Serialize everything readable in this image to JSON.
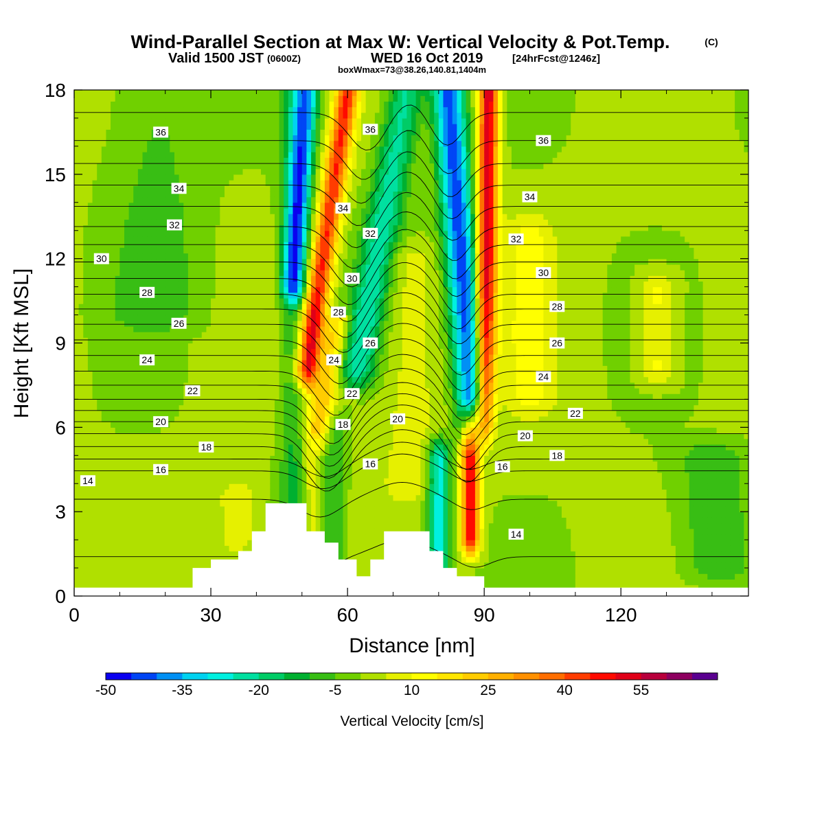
{
  "chart_data": {
    "type": "heatmap",
    "title": {
      "main": "Wind-Parallel Section at Max W: Vertical Velocity & Pot.Temp.",
      "copyright": "(C)",
      "line2_a": "Valid 1500 JST",
      "line2_b": "(0600Z)",
      "line2_c": "WED 16 Oct 2019",
      "line2_d": "[24hrFcst@1246z]",
      "line3": "boxWmax=73@38.26,140.81,1404m"
    },
    "xlabel": "Distance [nm]",
    "ylabel": "Height [Kft MSL]",
    "xlim": [
      0,
      148
    ],
    "ylim": [
      0,
      18
    ],
    "x_ticks": [
      "0",
      "30",
      "60",
      "90",
      "120"
    ],
    "y_ticks": [
      "0",
      "3",
      "6",
      "9",
      "12",
      "15",
      "18"
    ],
    "colorbar": {
      "label": "Vertical Velocity [cm/s]",
      "tick_labels": [
        "-50",
        "-35",
        "-20",
        "-5",
        "10",
        "25",
        "40",
        "55"
      ],
      "colors": [
        "#0a00f0",
        "#0045f5",
        "#0090f5",
        "#00d2f0",
        "#00f0e0",
        "#00e0a0",
        "#00cc66",
        "#00b030",
        "#38be14",
        "#70d000",
        "#b0e000",
        "#e6f000",
        "#ffff00",
        "#ffe600",
        "#ffcc00",
        "#ffb000",
        "#ff9000",
        "#ff6e00",
        "#ff3c00",
        "#ff0a00",
        "#e00018",
        "#b8003c",
        "#8e0060",
        "#5a0090"
      ]
    },
    "bands": [
      {
        "x": 48,
        "w": 3,
        "v": -12,
        "y0": 0,
        "y1": 18
      },
      {
        "x": 52,
        "w": 2.2,
        "v": 8,
        "y0": 1,
        "y1": 10
      },
      {
        "x": 57,
        "w": 2.5,
        "v": -10,
        "y0": 1,
        "y1": 6
      },
      {
        "x": 74,
        "w": 6,
        "v": 8,
        "y0": 4,
        "y1": 12
      },
      {
        "x": 80,
        "w": 2.5,
        "v": -30,
        "y0": 1,
        "y1": 5
      },
      {
        "x": 87,
        "w": 2,
        "v": 48,
        "y0": 2,
        "y1": 6
      },
      {
        "x": 100,
        "w": 5,
        "v": 10,
        "y0": 7,
        "y1": 13
      },
      {
        "x": 128,
        "w": 4,
        "v": 12,
        "y0": 8,
        "y1": 11
      },
      {
        "x": 36,
        "w": 4,
        "v": 10,
        "y0": 2,
        "y1": 3.5
      },
      {
        "x": 18,
        "w": 10,
        "v": -8,
        "y0": 10,
        "y1": 18
      },
      {
        "x": 140,
        "w": 8,
        "v": -10,
        "y0": 1,
        "y1": 5
      }
    ],
    "tilted_bands": [
      {
        "x_top": 51,
        "x_bot": 48,
        "w": 2.5,
        "v": -38,
        "y0": 11,
        "y1": 18
      },
      {
        "x_top": 60,
        "x_bot": 51,
        "w": 2.5,
        "v": 44,
        "y0": 8,
        "y1": 18
      },
      {
        "x_top": 82,
        "x_bot": 88,
        "w": 3.5,
        "v": -44,
        "y0": 6,
        "y1": 18
      },
      {
        "x_top": 91,
        "x_bot": 90,
        "w": 2.2,
        "v": 54,
        "y0": 6,
        "y1": 18
      },
      {
        "x_top": 73,
        "x_bot": 62,
        "w": 4,
        "v": -24,
        "y0": 8,
        "y1": 18
      },
      {
        "x_top": 58,
        "x_bot": 54,
        "w": 2.5,
        "v": 20,
        "y0": 6,
        "y1": 10
      }
    ],
    "terrain": [
      [
        0,
        0.3
      ],
      [
        26,
        0.3
      ],
      [
        26,
        1
      ],
      [
        30,
        1
      ],
      [
        30,
        1.3
      ],
      [
        36,
        1.3
      ],
      [
        36,
        1.6
      ],
      [
        39,
        1.6
      ],
      [
        39,
        2.3
      ],
      [
        42,
        2.3
      ],
      [
        42,
        3.3
      ],
      [
        51,
        3.3
      ],
      [
        51,
        2.3
      ],
      [
        55,
        2.3
      ],
      [
        55,
        1.9
      ],
      [
        58,
        1.9
      ],
      [
        58,
        1.3
      ],
      [
        62,
        1.3
      ],
      [
        62,
        0.7
      ],
      [
        65,
        0.7
      ],
      [
        65,
        1.3
      ],
      [
        68,
        1.3
      ],
      [
        68,
        2.3
      ],
      [
        78,
        2.3
      ],
      [
        78,
        1.6
      ],
      [
        81,
        1.6
      ],
      [
        81,
        1
      ],
      [
        84,
        1
      ],
      [
        84,
        0.7
      ],
      [
        90,
        0.7
      ],
      [
        90,
        0.3
      ],
      [
        148,
        0.3
      ]
    ],
    "theta_levels": [
      13,
      14,
      15,
      16,
      17,
      18,
      19,
      20,
      21,
      22,
      23,
      24,
      25,
      26,
      27,
      28,
      29,
      30,
      31,
      32,
      33,
      34,
      35,
      36,
      37
    ],
    "theta_profile": {
      "z": [
        0.3,
        2.5,
        4.2,
        5.0,
        6.0,
        7.0,
        8.0,
        9.0,
        10.0,
        11.0,
        12.0,
        13.0,
        14.0,
        15.0,
        16.0,
        17.0,
        18.0
      ],
      "theta": [
        12.5,
        13.5,
        14.4,
        16.3,
        18.5,
        21,
        23,
        24.8,
        26.6,
        28.5,
        30.2,
        31.8,
        33.2,
        34.5,
        35.8,
        36.8,
        37.8
      ]
    },
    "contour_labels": [
      {
        "text": "36",
        "x": 19,
        "y": 16.5
      },
      {
        "text": "36",
        "x": 65,
        "y": 16.6
      },
      {
        "text": "36",
        "x": 103,
        "y": 16.2
      },
      {
        "text": "34",
        "x": 23,
        "y": 14.5
      },
      {
        "text": "34",
        "x": 59,
        "y": 13.8
      },
      {
        "text": "34",
        "x": 100,
        "y": 14.2
      },
      {
        "text": "32",
        "x": 22,
        "y": 13.2
      },
      {
        "text": "32",
        "x": 65,
        "y": 12.9
      },
      {
        "text": "32",
        "x": 97,
        "y": 12.7
      },
      {
        "text": "30",
        "x": 6,
        "y": 12.0
      },
      {
        "text": "30",
        "x": 61,
        "y": 11.3
      },
      {
        "text": "30",
        "x": 103,
        "y": 11.5
      },
      {
        "text": "28",
        "x": 16,
        "y": 10.8
      },
      {
        "text": "28",
        "x": 58,
        "y": 10.1
      },
      {
        "text": "28",
        "x": 106,
        "y": 10.3
      },
      {
        "text": "26",
        "x": 23,
        "y": 9.7
      },
      {
        "text": "26",
        "x": 65,
        "y": 9.0
      },
      {
        "text": "26",
        "x": 106,
        "y": 9.0
      },
      {
        "text": "24",
        "x": 16,
        "y": 8.4
      },
      {
        "text": "24",
        "x": 57,
        "y": 8.4
      },
      {
        "text": "24",
        "x": 103,
        "y": 7.8
      },
      {
        "text": "22",
        "x": 26,
        "y": 7.3
      },
      {
        "text": "22",
        "x": 61,
        "y": 7.2
      },
      {
        "text": "22",
        "x": 110,
        "y": 6.5
      },
      {
        "text": "20",
        "x": 19,
        "y": 6.2
      },
      {
        "text": "20",
        "x": 71,
        "y": 6.3
      },
      {
        "text": "20",
        "x": 99,
        "y": 5.7
      },
      {
        "text": "18",
        "x": 29,
        "y": 5.3
      },
      {
        "text": "18",
        "x": 59,
        "y": 6.1
      },
      {
        "text": "18",
        "x": 106,
        "y": 5.0
      },
      {
        "text": "16",
        "x": 19,
        "y": 4.5
      },
      {
        "text": "16",
        "x": 65,
        "y": 4.7
      },
      {
        "text": "16",
        "x": 94,
        "y": 4.6
      },
      {
        "text": "14",
        "x": 3,
        "y": 4.1
      },
      {
        "text": "14",
        "x": 97,
        "y": 2.2
      }
    ]
  }
}
